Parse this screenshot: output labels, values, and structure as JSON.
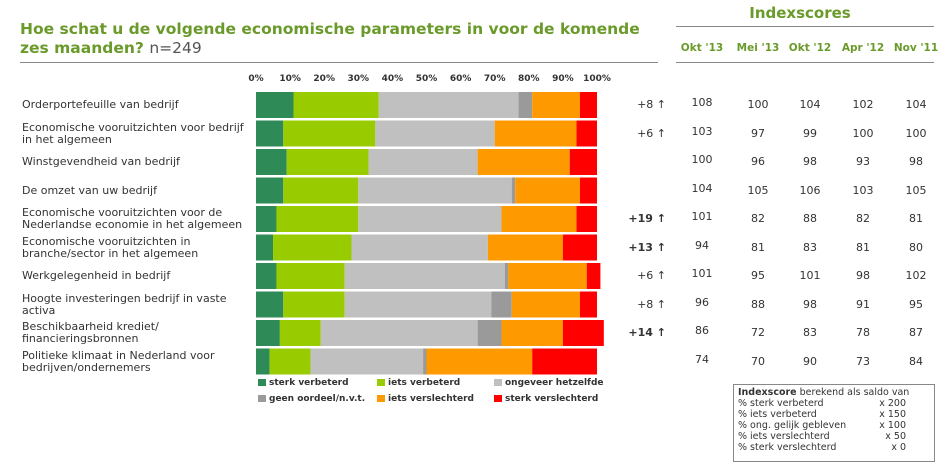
{
  "title": "Hoe schat u de volgende economische parameters in voor de komende zes maanden?",
  "n_label": "n=249",
  "index_title": "Indexscores",
  "index_headers": [
    "Okt '13",
    "Mei '13",
    "Okt '12",
    "Apr '12",
    "Nov '11"
  ],
  "colors": {
    "sterk_verbeterd": "#2e8b57",
    "iets_verbeterd": "#99cc00",
    "ongeveer_hetzelfde": "#c0c0c0",
    "geen_oordeel": "#9a9a9a",
    "iets_verslechterd": "#ff9900",
    "sterk_verslechterd": "#ff0000"
  },
  "chart_data": {
    "type": "bar",
    "orientation": "horizontal",
    "stacked": true,
    "title": "Hoe schat u de volgende economische parameters in voor de komende zes maanden?",
    "xlim": [
      0,
      100
    ],
    "xticks": [
      "0%",
      "10%",
      "20%",
      "30%",
      "40%",
      "50%",
      "60%",
      "70%",
      "80%",
      "90%",
      "100%"
    ],
    "categories": [
      "Orderportefeuille van bedrijf",
      "Economische vooruitzichten voor bedrijf in het algemeen",
      "Winstgevendheid van bedrijf",
      "De omzet van uw bedrijf",
      "Economische vooruitzichten voor de Nederlandse economie in het algemeen",
      "Economische vooruitzichten in branche/sector in het algemeen",
      "Werkgelegenheid in bedrijf",
      "Hoogte investeringen bedrijf in vaste activa",
      "Beschikbaarheid krediet/ financieringsbronnen",
      "Politieke klimaat in Nederland voor bedrijven/ondernemers"
    ],
    "series": [
      {
        "name": "sterk verbeterd",
        "color_key": "sterk_verbeterd",
        "values": [
          11,
          8,
          9,
          8,
          6,
          5,
          6,
          8,
          7,
          4
        ]
      },
      {
        "name": "iets verbeterd",
        "color_key": "iets_verbeterd",
        "values": [
          25,
          27,
          24,
          22,
          24,
          23,
          20,
          18,
          12,
          12
        ]
      },
      {
        "name": "ongeveer hetzelfde",
        "color_key": "ongeveer_hetzelfde",
        "values": [
          41,
          35,
          32,
          45,
          42,
          40,
          47,
          43,
          46,
          33
        ]
      },
      {
        "name": "geen oordeel/n.v.t.",
        "color_key": "geen_oordeel",
        "values": [
          4,
          0,
          0,
          1,
          0,
          0,
          1,
          6,
          7,
          1
        ]
      },
      {
        "name": "iets verslechterd",
        "color_key": "iets_verslechterd",
        "values": [
          14,
          24,
          27,
          19,
          22,
          22,
          23,
          20,
          18,
          31
        ]
      },
      {
        "name": "sterk verslechterd",
        "color_key": "sterk_verslechterd",
        "values": [
          5,
          6,
          8,
          5,
          6,
          10,
          4,
          5,
          12,
          19
        ]
      }
    ],
    "changes": [
      "+8 ↑",
      "+6 ↑",
      "",
      "",
      "+19 ↑",
      "+13 ↑",
      "+6 ↑",
      "+8 ↑",
      "+14 ↑",
      ""
    ],
    "changes_bold": [
      false,
      false,
      false,
      false,
      true,
      true,
      false,
      false,
      true,
      false
    ],
    "index_scores": [
      [
        108,
        100,
        104,
        102,
        104
      ],
      [
        103,
        97,
        99,
        100,
        100
      ],
      [
        100,
        96,
        98,
        93,
        98
      ],
      [
        104,
        105,
        106,
        103,
        105
      ],
      [
        101,
        82,
        88,
        82,
        81
      ],
      [
        94,
        81,
        83,
        81,
        80
      ],
      [
        101,
        95,
        101,
        98,
        102
      ],
      [
        96,
        88,
        98,
        91,
        95
      ],
      [
        86,
        72,
        83,
        78,
        87
      ],
      [
        74,
        70,
        90,
        73,
        84
      ]
    ]
  },
  "legend": [
    {
      "label": "sterk verbeterd",
      "color_key": "sterk_verbeterd"
    },
    {
      "label": "iets verbeterd",
      "color_key": "iets_verbeterd"
    },
    {
      "label": "ongeveer hetzelfde",
      "color_key": "ongeveer_hetzelfde"
    },
    {
      "label": "geen oordeel/n.v.t.",
      "color_key": "geen_oordeel"
    },
    {
      "label": "iets verslechterd",
      "color_key": "iets_verslechterd"
    },
    {
      "label": "sterk verslechterd",
      "color_key": "sterk_verslechterd"
    }
  ],
  "infobox": {
    "title_bold": "Indexscore",
    "title_rest": " berekend als saldo van",
    "rows": [
      {
        "label": "% sterk verbeterd",
        "factor": "x 200"
      },
      {
        "label": "% iets verbeterd",
        "factor": "x 150"
      },
      {
        "label": "% ong. gelijk gebleven",
        "factor": "x 100"
      },
      {
        "label": "% iets verslechterd",
        "factor": "x 50"
      },
      {
        "label": "% sterk verslechterd",
        "factor": "x 0"
      }
    ]
  }
}
